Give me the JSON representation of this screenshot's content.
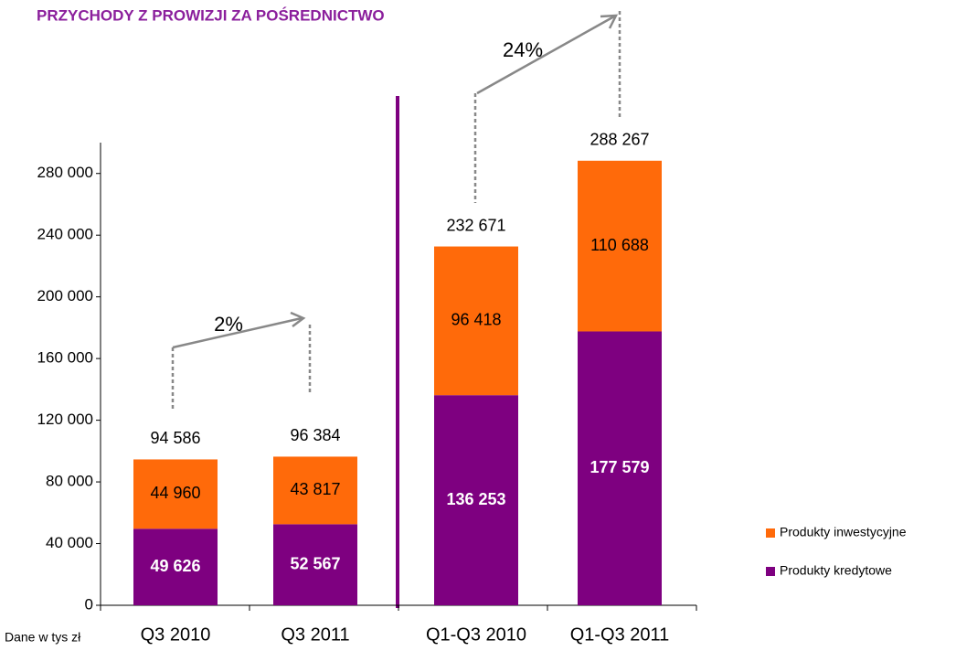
{
  "chart_data": {
    "type": "stacked_bar",
    "title": "PRZYCHODY Z PROWIZJI ZA POŚREDNICTWO",
    "note": "Dane w tys zł",
    "categories": [
      "Q3 2010",
      "Q3 2011",
      "Q1-Q3 2010",
      "Q1-Q3 2011"
    ],
    "series": [
      {
        "name": "Produkty kredytowe",
        "color": "#7e0080",
        "values": [
          49626,
          52567,
          136253,
          177579
        ],
        "value_labels": [
          "49 626",
          "52 567",
          "136 253",
          "177 579"
        ]
      },
      {
        "name": "Produkty inwestycyjne",
        "color": "#ff6a0a",
        "values": [
          44960,
          43817,
          96418,
          110688
        ],
        "value_labels": [
          "44 960",
          "43 817",
          "96 418",
          "110 688"
        ]
      }
    ],
    "totals": [
      94586,
      96384,
      232671,
      288267
    ],
    "total_labels": [
      "94 586",
      "96 384",
      "232 671",
      "288 267"
    ],
    "annotations": [
      "2%",
      "24%"
    ],
    "ylim": [
      0,
      300000
    ],
    "yticks": [
      0,
      {
        "value": 40000,
        "label": "40 000"
      },
      {
        "value": 80000,
        "label": "80 000"
      },
      {
        "value": 120000,
        "label": "120 000"
      },
      {
        "value": 160000,
        "label": "160 000"
      },
      {
        "value": 200000,
        "label": "200 000"
      },
      {
        "value": 240000,
        "label": "240 000"
      },
      {
        "value": 280000,
        "label": "280 000"
      }
    ],
    "legend": "right"
  }
}
